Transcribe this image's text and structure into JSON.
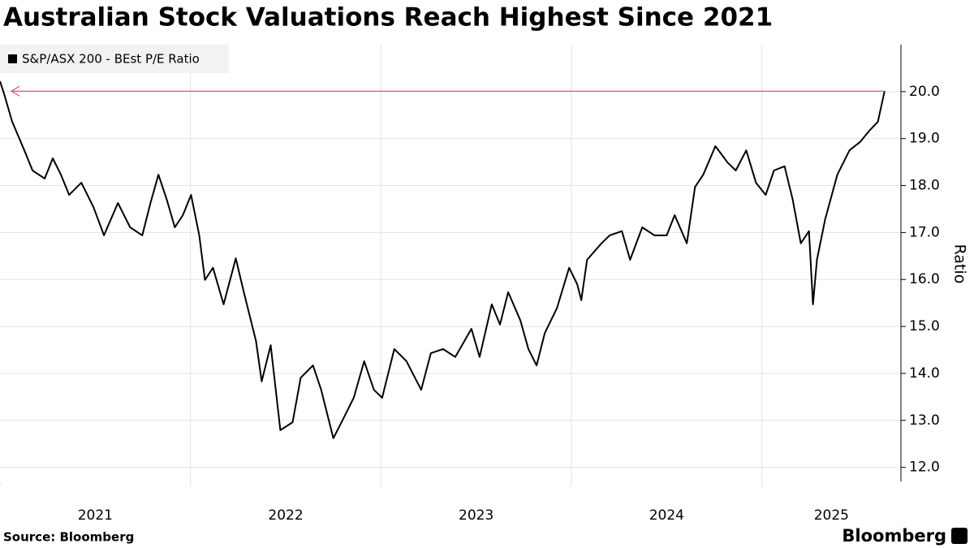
{
  "chart_data": {
    "type": "line",
    "title": "Australian Stock Valuations Reach Highest Since 2021",
    "source": "Source: Bloomberg",
    "logo": "Bloomberg",
    "y_label": "Ratio",
    "x": [
      2021.0,
      2021.021,
      2021.064,
      2021.128,
      2021.171,
      2021.235,
      2021.277,
      2021.32,
      2021.363,
      2021.427,
      2021.491,
      2021.546,
      2021.619,
      2021.683,
      2021.747,
      2021.79,
      2021.832,
      2021.875,
      2021.918,
      2021.96,
      2022.003,
      2022.046,
      2022.076,
      2022.118,
      2022.174,
      2022.238,
      2022.28,
      2022.344,
      2022.374,
      2022.421,
      2022.472,
      2022.536,
      2022.579,
      2022.643,
      2022.686,
      2022.75,
      2022.793,
      2022.857,
      2022.912,
      2022.963,
      2023.006,
      2023.07,
      2023.134,
      2023.211,
      2023.262,
      2023.326,
      2023.39,
      2023.475,
      2023.518,
      2023.582,
      2023.625,
      2023.668,
      2023.732,
      2023.774,
      2023.817,
      2023.86,
      2023.924,
      2023.988,
      2024.03,
      2024.052,
      2024.082,
      2024.158,
      2024.201,
      2024.265,
      2024.308,
      2024.372,
      2024.436,
      2024.5,
      2024.542,
      2024.606,
      2024.649,
      2024.692,
      2024.756,
      2024.82,
      2024.863,
      2024.918,
      2024.969,
      2025.02,
      2025.063,
      2025.119,
      2025.161,
      2025.204,
      2025.247,
      2025.268,
      2025.289,
      2025.332,
      2025.396,
      2025.46,
      2025.516,
      2025.567,
      2025.609,
      2025.644
    ],
    "series": [
      {
        "name": "S&P/ASX 200 - BEst P/E Ratio",
        "color": "#000000",
        "values": [
          20.22,
          19.96,
          19.36,
          18.75,
          18.32,
          18.15,
          18.58,
          18.23,
          17.8,
          18.06,
          17.54,
          16.94,
          17.63,
          17.11,
          16.94,
          17.63,
          18.23,
          17.71,
          17.11,
          17.37,
          17.8,
          16.94,
          15.99,
          16.25,
          15.47,
          16.45,
          15.73,
          14.69,
          13.83,
          14.6,
          12.79,
          12.96,
          13.91,
          14.17,
          13.65,
          12.62,
          12.96,
          13.48,
          14.26,
          13.65,
          13.48,
          14.52,
          14.26,
          13.65,
          14.43,
          14.52,
          14.35,
          14.95,
          14.35,
          15.47,
          15.04,
          15.73,
          15.13,
          14.52,
          14.17,
          14.86,
          15.39,
          16.25,
          15.9,
          15.56,
          16.42,
          16.77,
          16.94,
          17.03,
          16.42,
          17.11,
          16.94,
          16.94,
          17.37,
          16.77,
          17.97,
          18.23,
          18.84,
          18.49,
          18.32,
          18.75,
          18.06,
          17.8,
          18.32,
          18.41,
          17.71,
          16.77,
          17.03,
          15.47,
          16.42,
          17.28,
          18.23,
          18.75,
          18.93,
          19.18,
          19.36,
          20.01
        ]
      }
    ],
    "xlim": [
      2021,
      2025.73
    ],
    "xticks": [
      2021,
      2022,
      2023,
      2024,
      2025
    ],
    "ylim": [
      11.7,
      21.0
    ],
    "yticks": [
      {
        "value": 12,
        "label": "12.0"
      },
      {
        "value": 13,
        "label": "13.0"
      },
      {
        "value": 14,
        "label": "14.0"
      },
      {
        "value": 15,
        "label": "15.0"
      },
      {
        "value": 16,
        "label": "16.0"
      },
      {
        "value": 17,
        "label": "17.0"
      },
      {
        "value": 18,
        "label": "18.0"
      },
      {
        "value": 19,
        "label": "19.0"
      },
      {
        "value": 20,
        "label": "20.0"
      }
    ],
    "grid": true,
    "legend": "top-left",
    "annotation_color": "#e2335f"
  }
}
